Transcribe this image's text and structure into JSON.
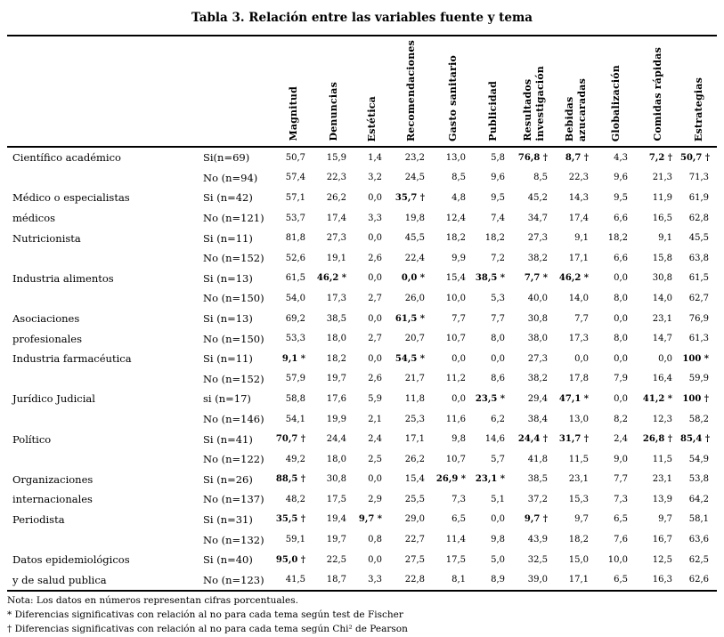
{
  "title": "Tabla 3. Relación entre las variables fuente y tema",
  "table": {
    "columns": [
      "Magnitud",
      "Denuncias",
      "Estética",
      "Recomendaciones",
      "Gasto sanitario",
      "Publicidad",
      "Resultados\ninvestigación",
      "Bebidas\nazucaradas",
      "Globalización",
      "Comidas rápidas",
      "Estrategias"
    ],
    "groups": [
      {
        "source": "Científico académico",
        "label_lines": [
          "Científico académico",
          ""
        ],
        "rows": [
          {
            "label": "Si(n=69)",
            "values": [
              "50,7",
              "15,9",
              "1,4",
              "23,2",
              "13,0",
              "5,8",
              "76,8 †",
              "8,7 †",
              "4,3",
              "7,2 †",
              "50,7 †"
            ]
          },
          {
            "label": "No (n=94)",
            "values": [
              "57,4",
              "22,3",
              "3,2",
              "24,5",
              "8,5",
              "9,6",
              "8,5",
              "22,3",
              "9,6",
              "21,3",
              "71,3"
            ]
          }
        ]
      },
      {
        "source": "Médico o especialistas médicos",
        "label_lines": [
          "Médico o especialistas",
          "médicos"
        ],
        "rows": [
          {
            "label": "Si (n=42)",
            "values": [
              "57,1",
              "26,2",
              "0,0",
              "35,7 †",
              "4,8",
              "9,5",
              "45,2",
              "14,3",
              "9,5",
              "11,9",
              "61,9"
            ]
          },
          {
            "label": "No (n=121)",
            "values": [
              "53,7",
              "17,4",
              "3,3",
              "19,8",
              "12,4",
              "7,4",
              "34,7",
              "17,4",
              "6,6",
              "16,5",
              "62,8"
            ]
          }
        ]
      },
      {
        "source": "Nutricionista",
        "label_lines": [
          "Nutricionista",
          ""
        ],
        "rows": [
          {
            "label": "Si (n=11)",
            "values": [
              "81,8",
              "27,3",
              "0,0",
              "45,5",
              "18,2",
              "18,2",
              "27,3",
              "9,1",
              "18,2",
              "9,1",
              "45,5"
            ]
          },
          {
            "label": "No (n=152)",
            "values": [
              "52,6",
              "19,1",
              "2,6",
              "22,4",
              "9,9",
              "7,2",
              "38,2",
              "17,1",
              "6,6",
              "15,8",
              "63,8"
            ]
          }
        ]
      },
      {
        "source": "Industria alimentos",
        "label_lines": [
          "Industria alimentos",
          ""
        ],
        "rows": [
          {
            "label": "Si (n=13)",
            "values": [
              "61,5",
              "46,2 *",
              "0,0",
              "0,0 *",
              "15,4",
              "38,5 *",
              "7,7 *",
              "46,2 *",
              "0,0",
              "30,8",
              "61,5"
            ]
          },
          {
            "label": "No (n=150)",
            "values": [
              "54,0",
              "17,3",
              "2,7",
              "26,0",
              "10,0",
              "5,3",
              "40,0",
              "14,0",
              "8,0",
              "14,0",
              "62,7"
            ]
          }
        ]
      },
      {
        "source": "Asociaciones profesionales",
        "label_lines": [
          "Asociaciones",
          "profesionales"
        ],
        "rows": [
          {
            "label": "Si (n=13)",
            "values": [
              "69,2",
              "38,5",
              "0,0",
              "61,5 *",
              "7,7",
              "7,7",
              "30,8",
              "7,7",
              "0,0",
              "23,1",
              "76,9"
            ]
          },
          {
            "label": "No (n=150)",
            "values": [
              "53,3",
              "18,0",
              "2,7",
              "20,7",
              "10,7",
              "8,0",
              "38,0",
              "17,3",
              "8,0",
              "14,7",
              "61,3"
            ]
          }
        ]
      },
      {
        "source": "Industria farmacéutica",
        "label_lines": [
          "Industria farmacéutica",
          ""
        ],
        "rows": [
          {
            "label": "Si (n=11)",
            "values": [
              "9,1 *",
              "18,2",
              "0,0",
              "54,5 *",
              "0,0",
              "0,0",
              "27,3",
              "0,0",
              "0,0",
              "0,0",
              "100 *"
            ]
          },
          {
            "label": "No (n=152)",
            "values": [
              "57,9",
              "19,7",
              "2,6",
              "21,7",
              "11,2",
              "8,6",
              "38,2",
              "17,8",
              "7,9",
              "16,4",
              "59,9"
            ]
          }
        ]
      },
      {
        "source": "Jurídico Judicial",
        "label_lines": [
          "Jurídico Judicial",
          ""
        ],
        "rows": [
          {
            "label": "si (n=17)",
            "values": [
              "58,8",
              "17,6",
              "5,9",
              "11,8",
              "0,0",
              "23,5 *",
              "29,4",
              "47,1 *",
              "0,0",
              "41,2 *",
              "100 †"
            ]
          },
          {
            "label": "No (n=146)",
            "values": [
              "54,1",
              "19,9",
              "2,1",
              "25,3",
              "11,6",
              "6,2",
              "38,4",
              "13,0",
              "8,2",
              "12,3",
              "58,2"
            ]
          }
        ]
      },
      {
        "source": "Político",
        "label_lines": [
          "Político",
          ""
        ],
        "rows": [
          {
            "label": "Si (n=41)",
            "values": [
              "70,7 †",
              "24,4",
              "2,4",
              "17,1",
              "9,8",
              "14,6",
              "24,4 †",
              "31,7 †",
              "2,4",
              "26,8 †",
              "85,4 †"
            ]
          },
          {
            "label": "No (n=122)",
            "values": [
              "49,2",
              "18,0",
              "2,5",
              "26,2",
              "10,7",
              "5,7",
              "41,8",
              "11,5",
              "9,0",
              "11,5",
              "54,9"
            ]
          }
        ]
      },
      {
        "source": "Organizaciones internacionales",
        "label_lines": [
          "Organizaciones",
          "internacionales"
        ],
        "rows": [
          {
            "label": "Si (n=26)",
            "values": [
              "88,5 †",
              "30,8",
              "0,0",
              "15,4",
              "26,9 *",
              "23,1 *",
              "38,5",
              "23,1",
              "7,7",
              "23,1",
              "53,8"
            ]
          },
          {
            "label": "No (n=137)",
            "values": [
              "48,2",
              "17,5",
              "2,9",
              "25,5",
              "7,3",
              "5,1",
              "37,2",
              "15,3",
              "7,3",
              "13,9",
              "64,2"
            ]
          }
        ]
      },
      {
        "source": "Periodista",
        "label_lines": [
          "Periodista",
          ""
        ],
        "rows": [
          {
            "label": "Si (n=31)",
            "values": [
              "35,5 †",
              "19,4",
              "9,7 *",
              "29,0",
              "6,5",
              "0,0",
              "9,7 †",
              "9,7",
              "6,5",
              "9,7",
              "58,1"
            ]
          },
          {
            "label": "No (n=132)",
            "values": [
              "59,1",
              "19,7",
              "0,8",
              "22,7",
              "11,4",
              "9,8",
              "43,9",
              "18,2",
              "7,6",
              "16,7",
              "63,6"
            ]
          }
        ]
      },
      {
        "source": "Datos epidemiológicos y de salud publica",
        "label_lines": [
          "Datos epidemiológicos",
          "y de salud publica"
        ],
        "rows": [
          {
            "label": "Si (n=40)",
            "values": [
              "95,0 †",
              "22,5",
              "0,0",
              "27,5",
              "17,5",
              "5,0",
              "32,5",
              "15,0",
              "10,0",
              "12,5",
              "62,5"
            ]
          },
          {
            "label": "No (n=123)",
            "values": [
              "41,5",
              "18,7",
              "3,3",
              "22,8",
              "8,1",
              "8,9",
              "39,0",
              "17,1",
              "6,5",
              "16,3",
              "62,6"
            ]
          }
        ]
      }
    ]
  },
  "notes": [
    "Nota: Los datos en números representan cifras porcentuales.",
    "* Diferencias significativas con relación al no para cada tema según test de Fischer",
    "† Diferencias significativas con relación al no para cada tema según Chi² de Pearson"
  ]
}
